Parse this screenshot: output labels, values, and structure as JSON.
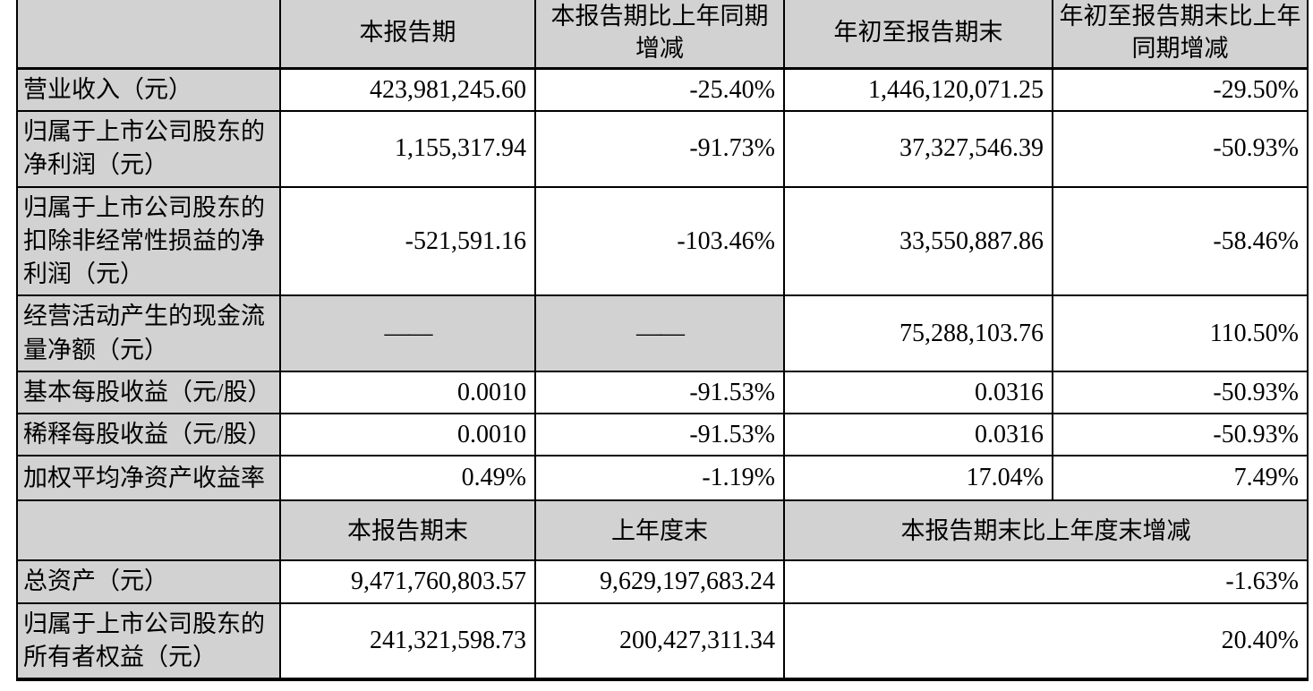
{
  "colors": {
    "header_bg": "#d2d2d2",
    "cell_bg": "#ffffff",
    "border": "#000000",
    "text": "#000000"
  },
  "table": {
    "header1": {
      "corner": "",
      "current_period": "本报告期",
      "current_period_yoy": "本报告期比上年同期\n增减",
      "ytd": "年初至报告期末",
      "ytd_yoy": "年初至报告期末比上年\n同期增减"
    },
    "rows_q": [
      {
        "label": "营业收入（元）",
        "v1": "423,981,245.60",
        "v2": "-25.40%",
        "v3": "1,446,120,071.25",
        "v4": "-29.50%"
      },
      {
        "label": "归属于上市公司股东的\n净利润（元）",
        "v1": "1,155,317.94",
        "v2": "-91.73%",
        "v3": "37,327,546.39",
        "v4": "-50.93%"
      },
      {
        "label": "归属于上市公司股东的\n扣除非经常性损益的净\n利润（元）",
        "v1": "-521,591.16",
        "v2": "-103.46%",
        "v3": "33,550,887.86",
        "v4": "-58.46%"
      },
      {
        "label": "经营活动产生的现金流\n量净额（元）",
        "v1": "——",
        "v2": "——",
        "v3": "75,288,103.76",
        "v4": "110.50%"
      },
      {
        "label": "基本每股收益（元/股）",
        "v1": "0.0010",
        "v2": "-91.53%",
        "v3": "0.0316",
        "v4": "-50.93%"
      },
      {
        "label": "稀释每股收益（元/股）",
        "v1": "0.0010",
        "v2": "-91.53%",
        "v3": "0.0316",
        "v4": "-50.93%"
      },
      {
        "label": "加权平均净资产收益率",
        "v1": "0.49%",
        "v2": "-1.19%",
        "v3": "17.04%",
        "v4": "7.49%"
      }
    ],
    "header2": {
      "corner": "",
      "period_end": "本报告期末",
      "prev_year_end": "上年度末",
      "period_end_vs_prev": "本报告期末比上年度末增减"
    },
    "rows_y": [
      {
        "label": "总资产（元）",
        "v1": "9,471,760,803.57",
        "v2": "9,629,197,683.24",
        "v3": "-1.63%"
      },
      {
        "label": "归属于上市公司股东的\n所有者权益（元）",
        "v1": "241,321,598.73",
        "v2": "200,427,311.34",
        "v3": "20.40%"
      }
    ]
  }
}
